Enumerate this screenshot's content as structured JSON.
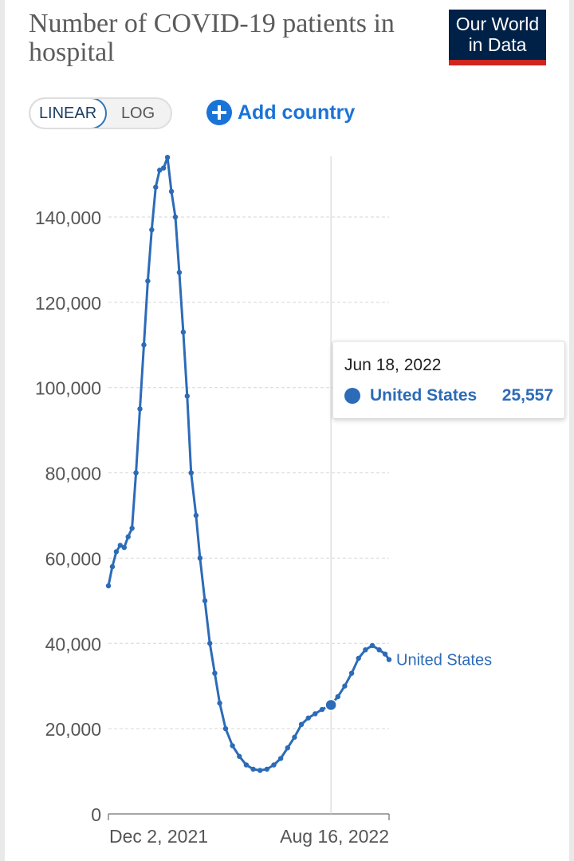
{
  "header": {
    "title": "Number of COVID-19 patients in hospital",
    "logo_line1": "Our World",
    "logo_line2": "in Data"
  },
  "controls": {
    "linear_label": "LINEAR",
    "log_label": "LOG",
    "active_scale": "linear",
    "add_country_label": "Add country"
  },
  "tooltip": {
    "date": "Jun 18, 2022",
    "series": "United States",
    "value": "25,557"
  },
  "colors": {
    "series": "#2c6bb7",
    "accent": "#1a73d6",
    "logo_bg": "#002147",
    "logo_bar": "#ce261e"
  },
  "chart_data": {
    "type": "line",
    "title": "Number of COVID-19 patients in hospital",
    "y_ticks": [
      0,
      20000,
      40000,
      60000,
      80000,
      100000,
      120000,
      140000
    ],
    "y_tick_labels": [
      "0",
      "20,000",
      "40,000",
      "60,000",
      "80,000",
      "100,000",
      "120,000",
      "140,000"
    ],
    "x_tick_labels": [
      "Dec 2, 2021",
      "Aug 16, 2022"
    ],
    "ylim": [
      0,
      150000
    ],
    "grid": "horizontal dashed",
    "series": [
      {
        "name": "United States",
        "end_label": "United States",
        "points": [
          [
            "2021-11-04",
            53500
          ],
          [
            "2021-11-08",
            58000
          ],
          [
            "2021-11-12",
            61500
          ],
          [
            "2021-11-16",
            63000
          ],
          [
            "2021-11-20",
            62500
          ],
          [
            "2021-11-24",
            65000
          ],
          [
            "2021-11-28",
            67000
          ],
          [
            "2021-12-02",
            80000
          ],
          [
            "2021-12-06",
            95000
          ],
          [
            "2021-12-10",
            110000
          ],
          [
            "2021-12-14",
            125000
          ],
          [
            "2021-12-18",
            137000
          ],
          [
            "2021-12-22",
            147000
          ],
          [
            "2021-12-26",
            151000
          ],
          [
            "2021-12-30",
            151500
          ],
          [
            "2022-01-03",
            154000
          ],
          [
            "2022-01-07",
            146000
          ],
          [
            "2022-01-11",
            140000
          ],
          [
            "2022-01-15",
            127000
          ],
          [
            "2022-01-19",
            113000
          ],
          [
            "2022-01-23",
            98000
          ],
          [
            "2022-01-27",
            80000
          ],
          [
            "2022-02-01",
            70000
          ],
          [
            "2022-02-05",
            60000
          ],
          [
            "2022-02-10",
            50000
          ],
          [
            "2022-02-15",
            40000
          ],
          [
            "2022-02-20",
            33000
          ],
          [
            "2022-02-25",
            26000
          ],
          [
            "2022-03-03",
            20000
          ],
          [
            "2022-03-10",
            16000
          ],
          [
            "2022-03-17",
            13500
          ],
          [
            "2022-03-24",
            11500
          ],
          [
            "2022-03-31",
            10500
          ],
          [
            "2022-04-07",
            10200
          ],
          [
            "2022-04-14",
            10500
          ],
          [
            "2022-04-21",
            11500
          ],
          [
            "2022-04-28",
            13000
          ],
          [
            "2022-05-05",
            15500
          ],
          [
            "2022-05-12",
            18000
          ],
          [
            "2022-05-19",
            21000
          ],
          [
            "2022-05-26",
            22500
          ],
          [
            "2022-06-02",
            23500
          ],
          [
            "2022-06-09",
            24500
          ],
          [
            "2022-06-18",
            25557
          ],
          [
            "2022-06-25",
            27500
          ],
          [
            "2022-07-02",
            30000
          ],
          [
            "2022-07-09",
            33000
          ],
          [
            "2022-07-16",
            36500
          ],
          [
            "2022-07-23",
            38500
          ],
          [
            "2022-07-30",
            39500
          ],
          [
            "2022-08-06",
            38500
          ],
          [
            "2022-08-12",
            37500
          ],
          [
            "2022-08-16",
            36200
          ]
        ]
      }
    ],
    "highlight": {
      "date": "2022-06-18",
      "value": 25557
    }
  }
}
